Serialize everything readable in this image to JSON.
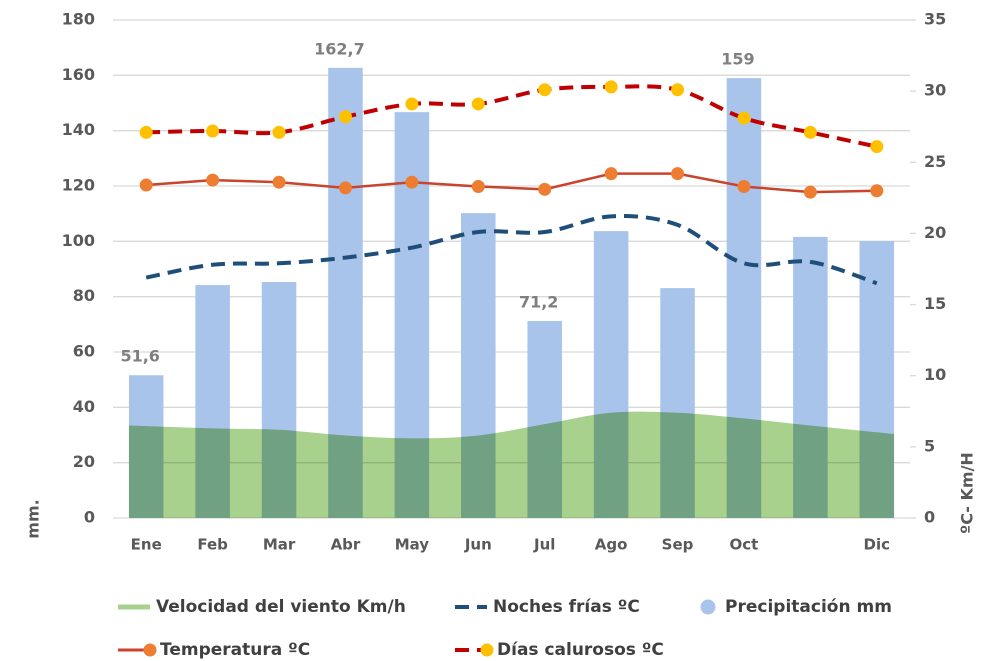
{
  "chart_data": {
    "type": "combo",
    "categories": [
      "Ene",
      "Feb",
      "Mar",
      "Abr",
      "May",
      "Jun",
      "Jul",
      "Ago",
      "Sep",
      "Oct",
      null,
      "Dic"
    ],
    "y_label": "mm.",
    "y2_label": "ºC- Km/H",
    "ylim": [
      0,
      180
    ],
    "yticks": [
      0,
      20,
      40,
      60,
      80,
      100,
      120,
      140,
      160,
      180
    ],
    "y2lim": [
      0,
      35
    ],
    "y2ticks": [
      0,
      5,
      10,
      15,
      20,
      25,
      30,
      35
    ],
    "grid": true,
    "series": [
      {
        "name": "Velocidad del viento Km/h",
        "type": "area",
        "axis": "y2",
        "color": "#a9d18e",
        "values": [
          6.5,
          6.3,
          6.2,
          5.8,
          5.6,
          5.8,
          6.6,
          7.4,
          7.4,
          7.0,
          6.5,
          5.9
        ]
      },
      {
        "name": "Noches frías ºC",
        "type": "line",
        "axis": "y2",
        "color": "#1f4e79",
        "dash": true,
        "values": [
          16.9,
          17.8,
          17.9,
          18.3,
          19.0,
          20.1,
          20.1,
          21.2,
          20.6,
          17.9,
          18.0,
          16.5
        ]
      },
      {
        "name": "Precipitación mm",
        "type": "bar",
        "color": "#a9c4eb",
        "values": [
          51.6,
          84.2,
          85.3,
          162.7,
          146.7,
          110.2,
          71.2,
          103.7,
          83.1,
          159,
          101.6,
          100.1
        ],
        "value_labels": [
          "51,6",
          null,
          null,
          "162,7",
          null,
          null,
          "71,2",
          null,
          null,
          "159",
          null,
          null
        ]
      },
      {
        "name": "Temperatura ºC",
        "type": "line",
        "axis": "y2",
        "color": "#c9442d",
        "marker_color": "#ed7d31",
        "values": [
          23.4,
          23.75,
          23.6,
          23.2,
          23.6,
          23.3,
          23.1,
          24.2,
          24.2,
          23.3,
          22.9,
          23.0
        ]
      },
      {
        "name": "Días calurosos ºC",
        "type": "line",
        "axis": "y2",
        "color": "#c00000",
        "dash": true,
        "marker_color": "#ffc000",
        "values": [
          27.1,
          27.2,
          27.1,
          28.2,
          29.1,
          29.1,
          30.1,
          30.3,
          30.1,
          28.1,
          27.1,
          26.1
        ]
      }
    ]
  }
}
